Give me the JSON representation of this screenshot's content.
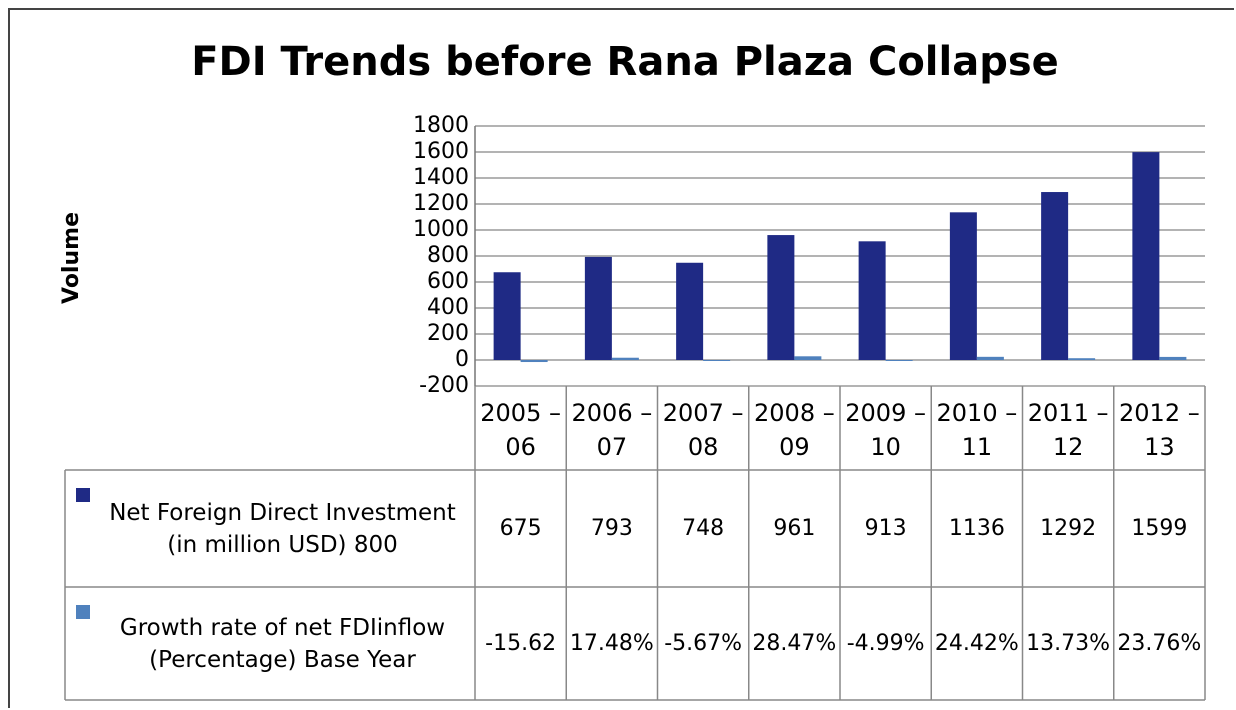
{
  "chart_data": {
    "type": "bar",
    "title": "FDI Trends before Rana Plaza Collapse",
    "y_label": "Volume",
    "categories": [
      "2005 – 06",
      "2006 – 07",
      "2007 – 08",
      "2008 – 09",
      "2009 – 10",
      "2010 – 11",
      "2011 – 12",
      "2012 – 13"
    ],
    "series": [
      {
        "name": "Net Foreign Direct Investment (in million USD) 800",
        "color": "#1f2a85",
        "values": [
          675,
          793,
          748,
          961,
          913,
          1136,
          1292,
          1599
        ]
      },
      {
        "name": "Growth rate of net FDIinflow (Percentage) Base Year",
        "color": "#4f81bd",
        "values": [
          -15.62,
          17.48,
          -5.67,
          28.47,
          -4.99,
          24.42,
          13.73,
          23.76
        ],
        "value_labels": [
          "-15.62",
          "17.48%",
          "-5.67%",
          "28.47%",
          "-4.99%",
          "24.42%",
          "13.73%",
          "23.76%"
        ]
      }
    ],
    "ylim": [
      -200,
      1800
    ],
    "yticks": [
      -200,
      0,
      200,
      400,
      600,
      800,
      1000,
      1200,
      1400,
      1600,
      1800
    ],
    "grid": true
  }
}
